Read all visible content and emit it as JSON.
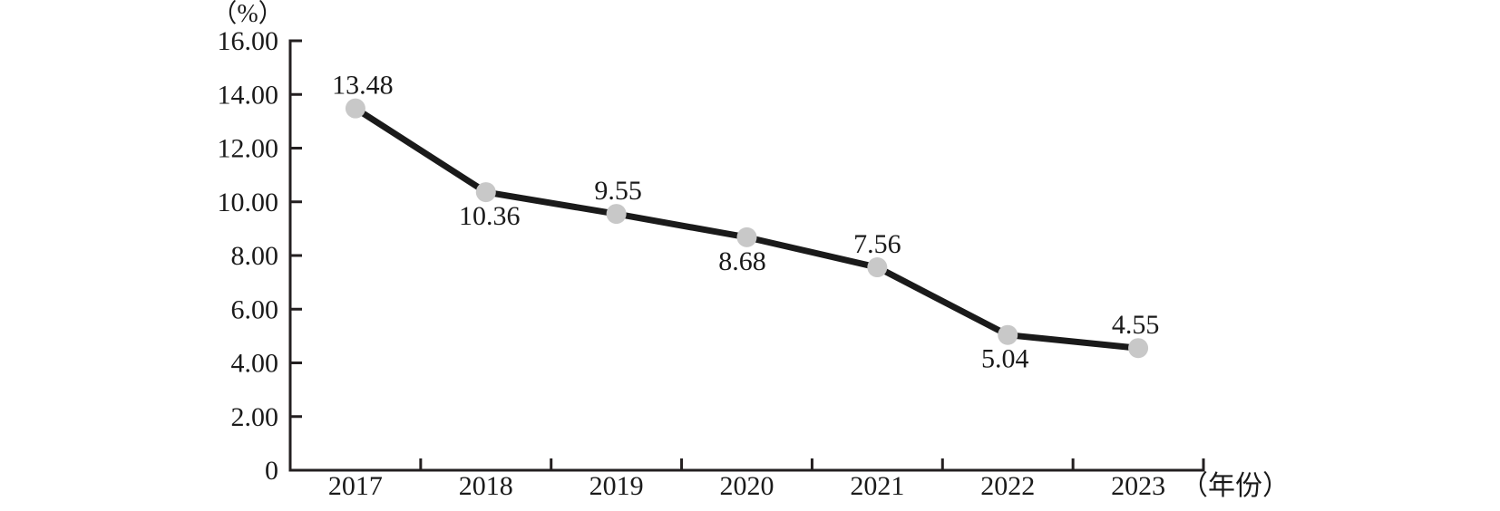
{
  "page": {
    "background": "#ffffff"
  },
  "chart_data": {
    "type": "line",
    "title": "",
    "categories": [
      "2017",
      "2018",
      "2019",
      "2020",
      "2021",
      "2022",
      "2023"
    ],
    "series": [
      {
        "name": "percentage",
        "values": [
          13.48,
          10.36,
          9.55,
          8.68,
          7.56,
          5.04,
          4.55
        ]
      }
    ],
    "point_labels": [
      "13.48",
      "10.36",
      "9.55",
      "8.68",
      "7.56",
      "5.04",
      "4.55"
    ],
    "point_label_positions": [
      "above",
      "below",
      "above",
      "below",
      "above",
      "below",
      "above"
    ],
    "ylabel": "（%）",
    "xlabel": "（年份）",
    "y_tick_labels": [
      "0",
      "2.00",
      "4.00",
      "6.00",
      "8.00",
      "10.00",
      "12.00",
      "14.00",
      "16.00"
    ],
    "ylim": [
      0,
      16
    ],
    "y_tick_step": 2,
    "grid": false,
    "legend": "none",
    "marker": "circle",
    "colors": {
      "line": "#1a1a1a",
      "marker": "#c8c8c8",
      "axis": "#231f20",
      "text": "#1a1a1a"
    }
  }
}
